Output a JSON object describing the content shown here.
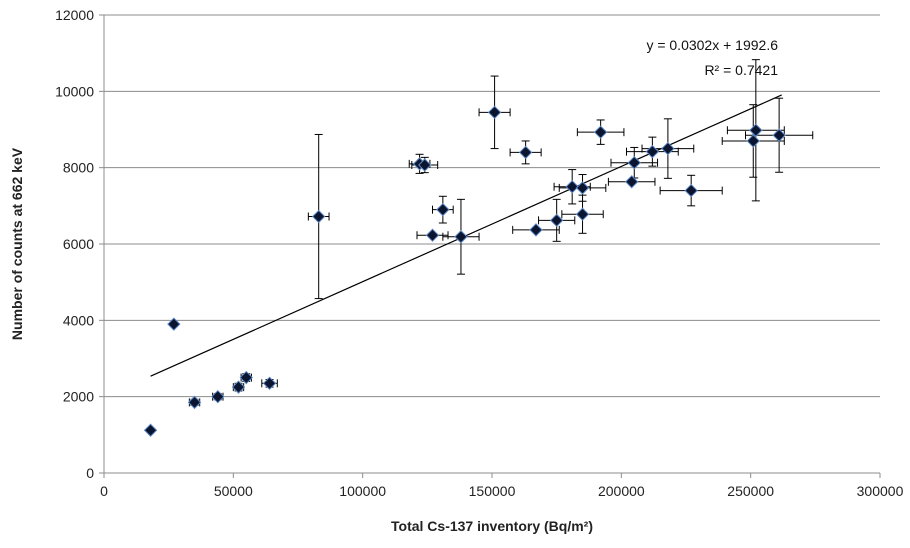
{
  "chart_data": {
    "type": "scatter",
    "xlabel": "Total Cs-137 inventory (Bq/m²)",
    "ylabel": "Number of counts at 662 keV",
    "xlim": [
      0,
      300000
    ],
    "ylim": [
      0,
      12000
    ],
    "x_ticks": [
      0,
      50000,
      100000,
      150000,
      200000,
      250000,
      300000
    ],
    "y_ticks": [
      0,
      2000,
      4000,
      6000,
      8000,
      10000,
      12000
    ],
    "x_tick_labels": [
      "0",
      "50000",
      "100000",
      "150000",
      "200000",
      "250000",
      "300000"
    ],
    "y_tick_labels": [
      "0",
      "2000",
      "4000",
      "6000",
      "8000",
      "10000",
      "12000"
    ],
    "grid": "horizontal",
    "marker": "diamond",
    "marker_color": "#0b1530",
    "marker_edge_color": "#5b87c5",
    "trendline": {
      "type": "linear",
      "slope": 0.0302,
      "intercept": 1992.6,
      "x_range": [
        18000,
        262000
      ],
      "equation_label": "y = 0.0302x + 1992.6",
      "r2_label": "R² = 0.7421"
    },
    "points": [
      {
        "x": 18000,
        "y": 1120,
        "xerr": 0,
        "yerr": 0
      },
      {
        "x": 27000,
        "y": 3900,
        "xerr": 0,
        "yerr": 0
      },
      {
        "x": 35000,
        "y": 1850,
        "xerr": 2000,
        "yerr": 80
      },
      {
        "x": 44000,
        "y": 2000,
        "xerr": 2000,
        "yerr": 80
      },
      {
        "x": 52000,
        "y": 2250,
        "xerr": 2000,
        "yerr": 100
      },
      {
        "x": 55000,
        "y": 2500,
        "xerr": 2000,
        "yerr": 100
      },
      {
        "x": 64000,
        "y": 2350,
        "xerr": 3000,
        "yerr": 100
      },
      {
        "x": 83000,
        "y": 6720,
        "xerr": 4000,
        "yerr": 2150
      },
      {
        "x": 122000,
        "y": 8100,
        "xerr": 4000,
        "yerr": 250
      },
      {
        "x": 124000,
        "y": 8070,
        "xerr": 5000,
        "yerr": 200
      },
      {
        "x": 127000,
        "y": 6230,
        "xerr": 6000,
        "yerr": 0
      },
      {
        "x": 131000,
        "y": 6900,
        "xerr": 4000,
        "yerr": 350
      },
      {
        "x": 138000,
        "y": 6190,
        "xerr": 7000,
        "yerr": 980
      },
      {
        "x": 151000,
        "y": 9450,
        "xerr": 6000,
        "yerr": 950
      },
      {
        "x": 163000,
        "y": 8400,
        "xerr": 6000,
        "yerr": 300
      },
      {
        "x": 167000,
        "y": 6370,
        "xerr": 9000,
        "yerr": 0
      },
      {
        "x": 175000,
        "y": 6620,
        "xerr": 7000,
        "yerr": 550
      },
      {
        "x": 181000,
        "y": 7500,
        "xerr": 7000,
        "yerr": 450
      },
      {
        "x": 185000,
        "y": 7470,
        "xerr": 9000,
        "yerr": 350
      },
      {
        "x": 185000,
        "y": 6780,
        "xerr": 8000,
        "yerr": 500
      },
      {
        "x": 192000,
        "y": 8930,
        "xerr": 9000,
        "yerr": 320
      },
      {
        "x": 204000,
        "y": 7630,
        "xerr": 9000,
        "yerr": 0
      },
      {
        "x": 205000,
        "y": 8130,
        "xerr": 9000,
        "yerr": 400
      },
      {
        "x": 212000,
        "y": 8420,
        "xerr": 10000,
        "yerr": 380
      },
      {
        "x": 218000,
        "y": 8500,
        "xerr": 10000,
        "yerr": 780
      },
      {
        "x": 227000,
        "y": 7400,
        "xerr": 12000,
        "yerr": 400
      },
      {
        "x": 251000,
        "y": 8700,
        "xerr": 12000,
        "yerr": 950
      },
      {
        "x": 252000,
        "y": 8980,
        "xerr": 11000,
        "yerr": 1850
      },
      {
        "x": 261000,
        "y": 8850,
        "xerr": 13000,
        "yerr": 970
      }
    ]
  }
}
